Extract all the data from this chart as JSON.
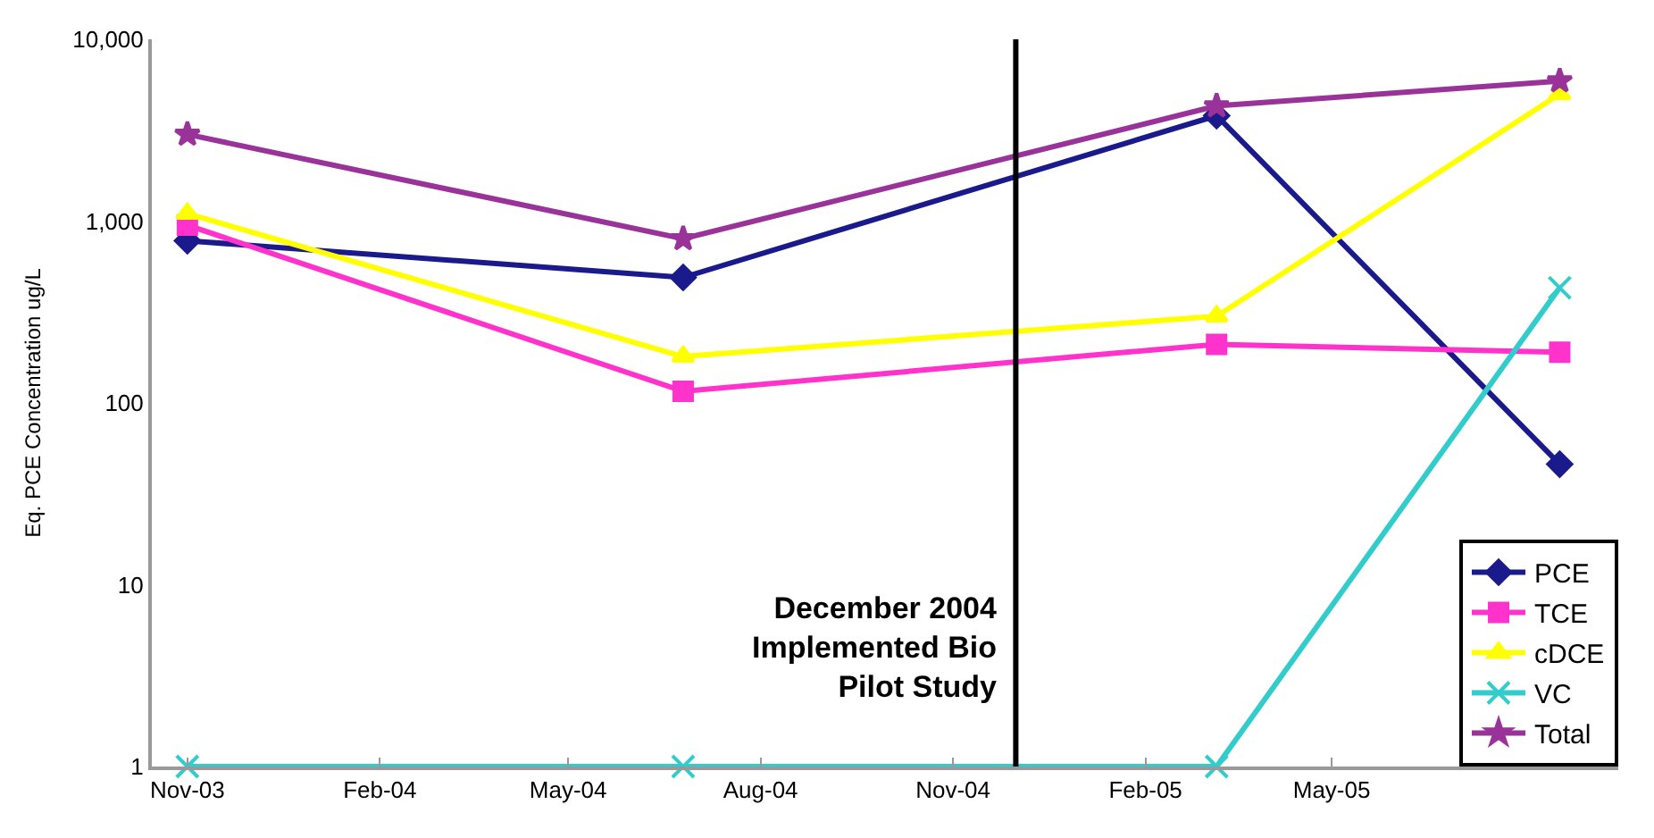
{
  "chart_data": {
    "type": "line",
    "ylabel": "Eq. PCE Concentration ug/L",
    "x": [
      "2003-11-01",
      "2004-06-25",
      "2005-03-07",
      "2005-08-18"
    ],
    "series": [
      {
        "name": "PCE",
        "color": "#1a1a8c",
        "marker": "diamond",
        "values": [
          780,
          490,
          3800,
          46
        ]
      },
      {
        "name": "TCE",
        "color": "#ff33cc",
        "marker": "square",
        "values": [
          950,
          116,
          210,
          190
        ]
      },
      {
        "name": "cDCE",
        "color": "#ffff00",
        "marker": "triangle",
        "values": [
          1100,
          180,
          300,
          5000
        ]
      },
      {
        "name": "VC",
        "color": "#33cccc",
        "marker": "cross",
        "values": [
          1,
          1,
          1,
          430
        ]
      },
      {
        "name": "Total",
        "color": "#993399",
        "marker": "star",
        "values": [
          3000,
          800,
          4300,
          5900
        ]
      }
    ],
    "log": true,
    "ylim": [
      1,
      10000
    ],
    "yticks": [
      {
        "value": 1,
        "label": "1"
      },
      {
        "value": 10,
        "label": "10"
      },
      {
        "value": 100,
        "label": "100"
      },
      {
        "value": 1000,
        "label": "1,000"
      },
      {
        "value": 10000,
        "label": "10,000"
      }
    ],
    "xlim": [
      "2003-10-15",
      "2005-09-15"
    ],
    "xticks": [
      {
        "value": "2003-11-01",
        "label": "Nov-03"
      },
      {
        "value": "2004-02-01",
        "label": "Feb-04"
      },
      {
        "value": "2004-05-01",
        "label": "May-04"
      },
      {
        "value": "2004-08-01",
        "label": "Aug-04"
      },
      {
        "value": "2004-11-01",
        "label": "Nov-04"
      },
      {
        "value": "2005-02-01",
        "label": "Feb-05"
      },
      {
        "value": "2005-05-01",
        "label": "May-05"
      }
    ],
    "ref_lines": [
      {
        "axis": "x",
        "value": "2004-12-01",
        "label": "December 2004\nImplemented Bio\nPilot Study",
        "color": "#000000"
      }
    ],
    "legend": "bottom right"
  }
}
